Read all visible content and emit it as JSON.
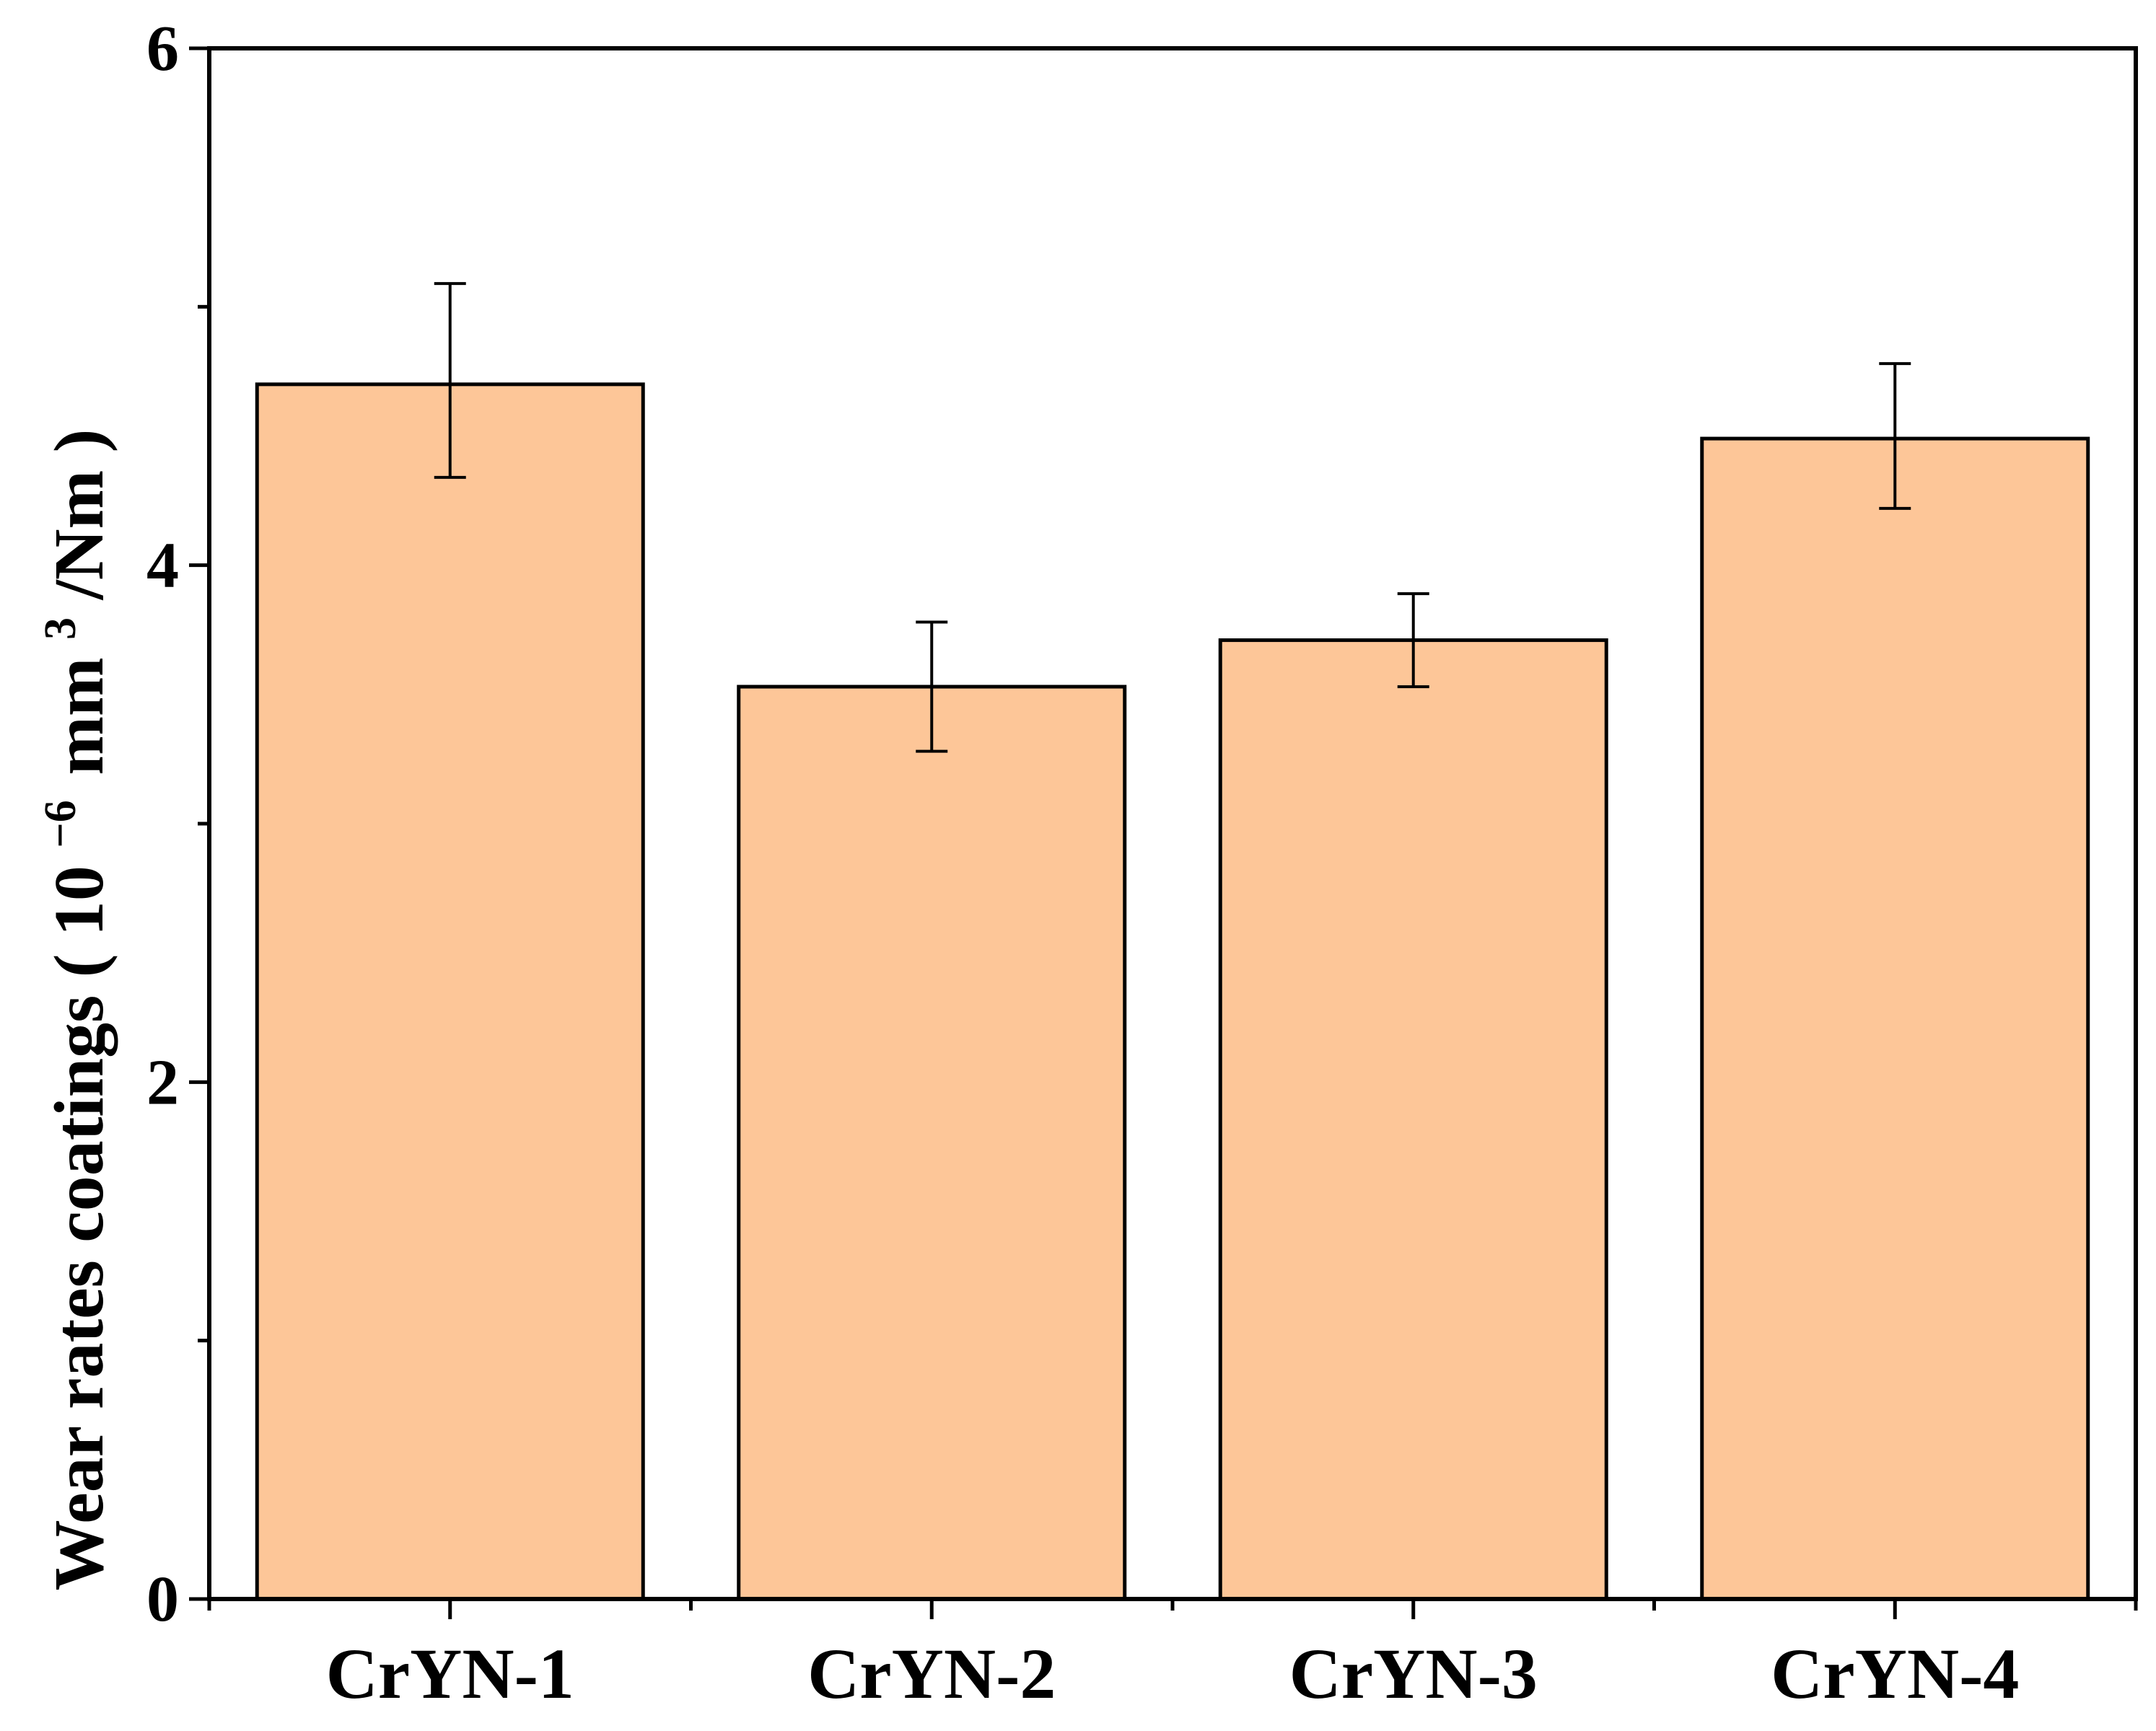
{
  "chart_data": {
    "type": "bar",
    "title": "",
    "xlabel": "",
    "ylabel": {
      "main": "Wear rates coatings",
      "open_paren": "(",
      "base": "10",
      "exponent": "−6",
      "unit": "mm",
      "unit_exponent": "3",
      "unit_tail": "/Nm",
      "close_paren": ")"
    },
    "categories": [
      "CrYN-1",
      "CrYN-2",
      "CrYN-3",
      "CrYN-4"
    ],
    "values": [
      4.7,
      3.53,
      3.71,
      4.49
    ],
    "error_low": [
      4.34,
      3.28,
      3.53,
      4.22
    ],
    "error_high": [
      5.09,
      3.78,
      3.89,
      4.78
    ],
    "ylim": [
      0,
      6
    ],
    "yticks": [
      "0",
      "2",
      "4",
      "6"
    ],
    "minor_ytick_step": 1,
    "grid": false,
    "legend": "none",
    "colors": {
      "bar_fill": "#FDC698",
      "bar_stroke": "#000000",
      "axis": "#000000"
    }
  }
}
